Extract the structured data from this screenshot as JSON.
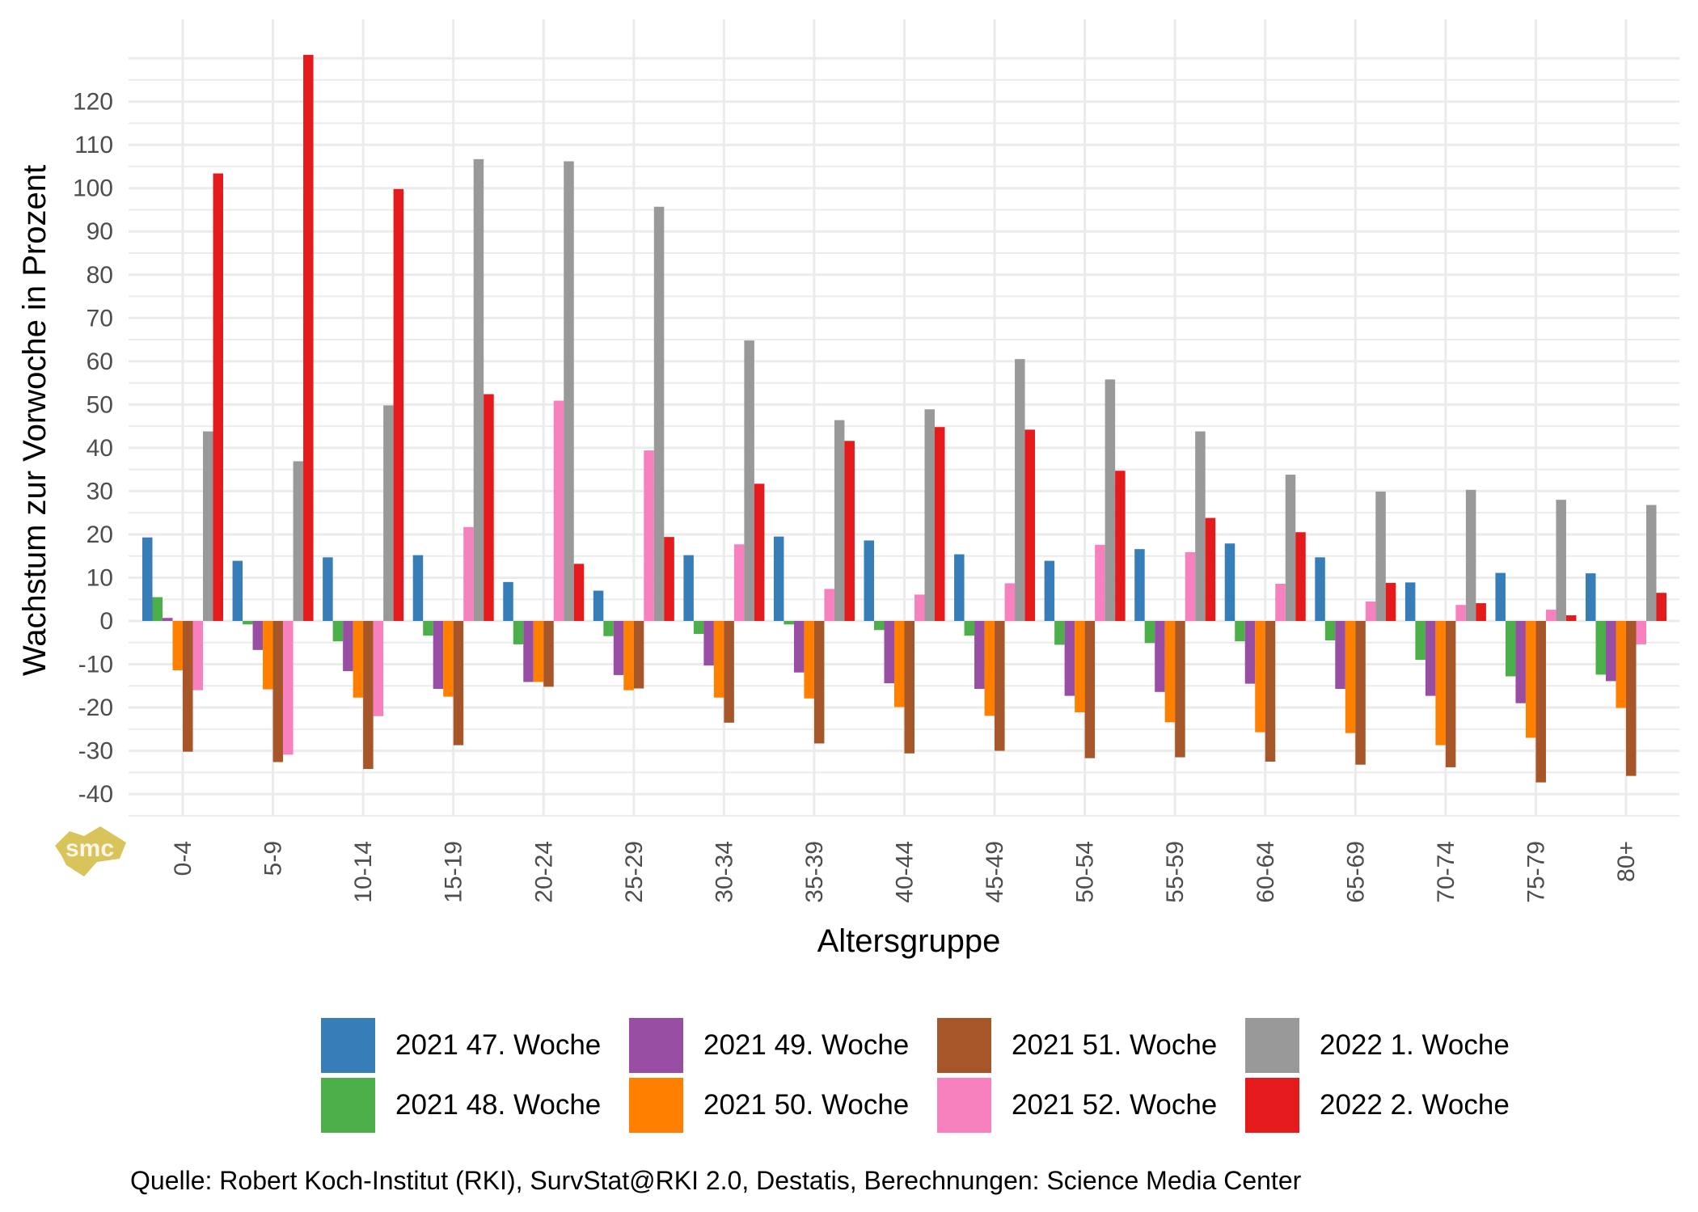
{
  "chart_data": {
    "type": "bar",
    "title": "",
    "xlabel": "Altersgruppe",
    "ylabel": "Wachstum zur Vorwoche in Prozent",
    "ylim": [
      -45,
      139
    ],
    "yticks": [
      -40,
      -30,
      -20,
      -10,
      0,
      10,
      20,
      30,
      40,
      50,
      60,
      70,
      80,
      90,
      100,
      110,
      120
    ],
    "grid": true,
    "legend_position": "bottom",
    "categories": [
      "0-4",
      "5-9",
      "10-14",
      "15-19",
      "20-24",
      "25-29",
      "30-34",
      "35-39",
      "40-44",
      "45-49",
      "50-54",
      "55-59",
      "60-64",
      "65-69",
      "70-74",
      "75-79",
      "80+"
    ],
    "series": [
      {
        "name": "2021 47. Woche",
        "color": "#377eb8",
        "values": [
          19.3,
          13.9,
          14.7,
          15.2,
          9.0,
          7.0,
          15.2,
          19.5,
          18.6,
          15.4,
          13.9,
          16.6,
          17.9,
          14.7,
          8.9,
          11.1,
          11.0
        ]
      },
      {
        "name": "2021 48. Woche",
        "color": "#4daf4a",
        "values": [
          5.5,
          -0.8,
          -4.7,
          -3.4,
          -5.4,
          -3.5,
          -3.0,
          -0.8,
          -2.1,
          -3.4,
          -5.5,
          -5.1,
          -4.7,
          -4.5,
          -9.0,
          -12.8,
          -12.4
        ]
      },
      {
        "name": "2021 49. Woche",
        "color": "#984ea3",
        "values": [
          0.7,
          -6.7,
          -11.6,
          -15.7,
          -14.1,
          -12.5,
          -10.3,
          -11.9,
          -14.4,
          -15.7,
          -17.3,
          -16.4,
          -14.5,
          -15.7,
          -17.3,
          -19.0,
          -13.9
        ]
      },
      {
        "name": "2021 50. Woche",
        "color": "#ff7f00",
        "values": [
          -11.4,
          -15.8,
          -17.7,
          -17.5,
          -14.1,
          -16.0,
          -17.7,
          -17.9,
          -19.9,
          -21.9,
          -21.1,
          -23.4,
          -25.7,
          -25.9,
          -28.7,
          -27.0,
          -20.1
        ]
      },
      {
        "name": "2021 51. Woche",
        "color": "#a65628",
        "values": [
          -30.2,
          -32.6,
          -34.2,
          -28.7,
          -15.2,
          -15.6,
          -23.5,
          -28.3,
          -30.6,
          -30.0,
          -31.7,
          -31.5,
          -32.5,
          -33.2,
          -33.8,
          -37.3,
          -35.8
        ]
      },
      {
        "name": "2021 52. Woche",
        "color": "#f781bf",
        "values": [
          -16.0,
          -30.9,
          -22.0,
          21.7,
          50.9,
          39.4,
          17.7,
          7.4,
          6.1,
          8.7,
          17.6,
          15.9,
          8.6,
          4.5,
          3.7,
          2.6,
          -5.4
        ]
      },
      {
        "name": "2022 1. Woche",
        "color": "#999999",
        "values": [
          43.8,
          36.9,
          49.8,
          106.7,
          106.2,
          95.7,
          64.8,
          46.4,
          48.9,
          60.5,
          55.8,
          43.8,
          33.8,
          29.9,
          30.3,
          28.0,
          26.8
        ]
      },
      {
        "name": "2022 2. Woche",
        "color": "#e41a1c",
        "values": [
          103.4,
          130.8,
          99.8,
          52.4,
          13.2,
          19.4,
          31.7,
          41.6,
          44.8,
          44.2,
          34.7,
          23.8,
          20.5,
          8.8,
          4.1,
          1.3,
          6.5
        ]
      }
    ]
  },
  "caption": "Quelle: Robert Koch-Institut (RKI), SurvStat@RKI 2.0, Destatis, Berechnungen: Science Media Center",
  "logo": {
    "text": "smc",
    "color": "#d8c45a",
    "icon": "smc-logo-icon"
  },
  "colors": {
    "grid": "#ebebeb",
    "tick_text": "#4d4d4d"
  }
}
